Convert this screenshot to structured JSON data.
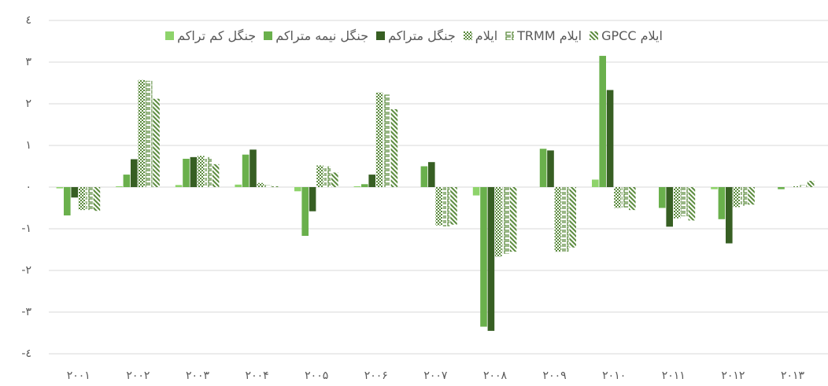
{
  "chart_data": {
    "type": "bar",
    "categories": [
      "۲۰۰۱",
      "۲۰۰۲",
      "۲۰۰۳",
      "۲۰۰۴",
      "۲۰۰۵",
      "۲۰۰۶",
      "۲۰۰۷",
      "۲۰۰۸",
      "۲۰۰۹",
      "۲۰۱۰",
      "۲۰۱۱",
      "۲۰۱۲",
      "۲۰۱۳"
    ],
    "series": [
      {
        "name": "جنگل کم تراکم",
        "color": "#8ed36b",
        "pattern": "solid",
        "values": [
          -0.03,
          0.02,
          0.05,
          0.06,
          -0.1,
          0.02,
          0,
          -0.2,
          0,
          0.18,
          0,
          -0.05,
          0
        ]
      },
      {
        "name": "جنگل نیمه متراکم",
        "color": "#6ab04c",
        "pattern": "solid",
        "values": [
          -0.68,
          0.3,
          0.68,
          0.78,
          -1.17,
          0.07,
          0.5,
          -3.35,
          0.92,
          3.15,
          -0.5,
          -0.77,
          -0.05
        ]
      },
      {
        "name": "جنگل متراکم",
        "color": "#375f23",
        "pattern": "solid",
        "values": [
          -0.25,
          0.67,
          0.72,
          0.9,
          -0.58,
          0.3,
          0.6,
          -3.45,
          0.88,
          2.33,
          -0.95,
          -1.35,
          0
        ]
      },
      {
        "name": "ایلام",
        "color": "#5a8a3c",
        "pattern": "checker",
        "values": [
          -0.55,
          2.57,
          0.75,
          0.1,
          0.52,
          2.27,
          -0.92,
          -1.67,
          -1.55,
          -0.5,
          -0.75,
          -0.48,
          0.02
        ]
      },
      {
        "name": "ایلام TRMM",
        "color": "#5a8a3c",
        "pattern": "bracket",
        "values": [
          -0.55,
          2.55,
          0.72,
          0.05,
          0.5,
          2.22,
          -0.95,
          -1.6,
          -1.55,
          -0.5,
          -0.7,
          -0.45,
          0.05
        ]
      },
      {
        "name": "ایلام GPCC",
        "color": "#5a8a3c",
        "pattern": "diagonal",
        "values": [
          -0.57,
          2.12,
          0.55,
          0.02,
          0.35,
          1.87,
          -0.9,
          -1.55,
          -1.45,
          -0.55,
          -0.8,
          -0.42,
          0.15
        ]
      }
    ],
    "ylim": [
      -4,
      4
    ],
    "yticks": [
      {
        "value": -4,
        "label": "-٤"
      },
      {
        "value": -3,
        "label": "-٣"
      },
      {
        "value": -2,
        "label": "-٢"
      },
      {
        "value": -1,
        "label": "-١"
      },
      {
        "value": 0,
        "label": "٠"
      },
      {
        "value": 1,
        "label": "١"
      },
      {
        "value": 2,
        "label": "٢"
      },
      {
        "value": 3,
        "label": "٣"
      },
      {
        "value": 4,
        "label": "٤"
      }
    ],
    "grid": true,
    "legend": "top"
  }
}
